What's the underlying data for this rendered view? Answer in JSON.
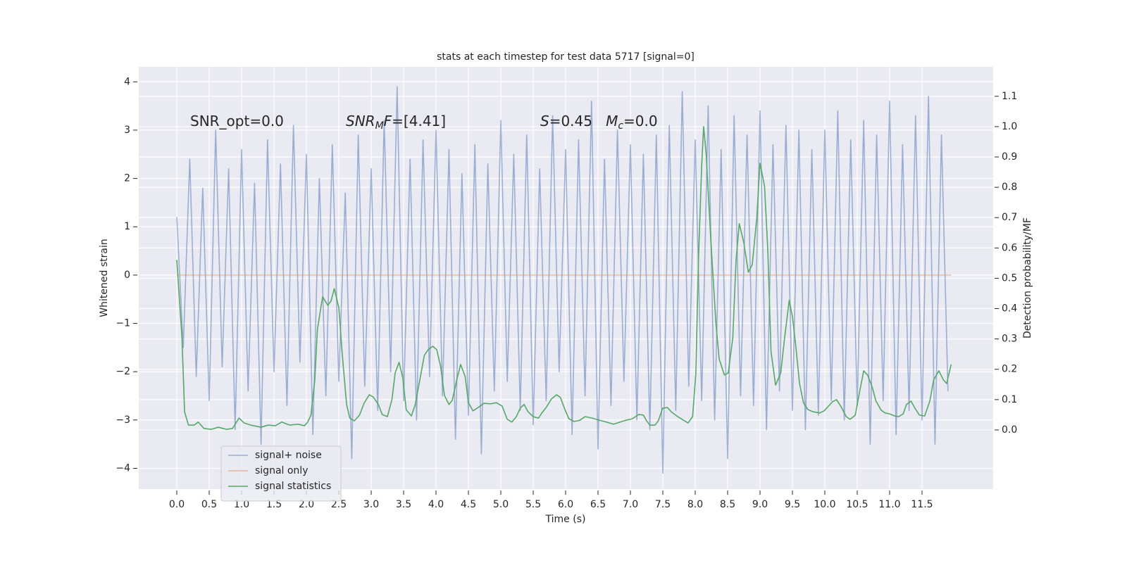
{
  "chart_data": {
    "type": "line",
    "title": "stats at each timestep for test data 5717 [signal=0]",
    "x_label": "Time (s)",
    "y_label": "Whitened strain",
    "y2_label": "Detection probability/MF",
    "xlim": [
      -0.587,
      12.598
    ],
    "ylim": [
      -4.43,
      4.31
    ],
    "y2lim": [
      -0.195,
      1.197
    ],
    "xticks": [
      {
        "value": 0,
        "label": "0.0"
      },
      0.5,
      {
        "value": 1,
        "label": "1.0"
      },
      1.5,
      {
        "value": 2,
        "label": "2.0"
      },
      2.5,
      {
        "value": 3,
        "label": "3.0"
      },
      3.5,
      {
        "value": 4,
        "label": "4.0"
      },
      4.5,
      {
        "value": 5,
        "label": "5.0"
      },
      5.5,
      {
        "value": 6,
        "label": "6.0"
      },
      6.5,
      {
        "value": 7,
        "label": "7.0"
      },
      7.5,
      {
        "value": 8,
        "label": "8.0"
      },
      8.5,
      {
        "value": 9,
        "label": "9.0"
      },
      9.5,
      {
        "value": 10,
        "label": "10.0"
      },
      10.5,
      {
        "value": 11,
        "label": "11.0"
      },
      11.5
    ],
    "yticks": [
      {
        "value": -4,
        "label": "−4"
      },
      {
        "value": -3,
        "label": "−3"
      },
      {
        "value": -2,
        "label": "−2"
      },
      {
        "value": -1,
        "label": "−1"
      },
      0,
      1,
      2,
      3,
      4
    ],
    "y2ticks": [
      {
        "value": 0,
        "label": "0.0"
      },
      0.1,
      0.2,
      0.3,
      0.4,
      0.5,
      0.6,
      0.7,
      0.8,
      0.9,
      {
        "value": 1,
        "label": "1.0"
      },
      1.1
    ],
    "grid": true,
    "legend": "lower left",
    "annotations": [
      [
        {
          "text": "SNR_opt=0.0"
        }
      ],
      [
        {
          "text": "SNR",
          "style": "italic"
        },
        {
          "text": "M",
          "style": "italic-sub"
        },
        {
          "text": "F",
          "style": "italic"
        },
        {
          "text": "=[4.41]"
        }
      ],
      [
        {
          "text": "S",
          "style": "italic"
        },
        {
          "text": "=0.45   "
        },
        {
          "text": "M",
          "style": "italic"
        },
        {
          "text": "c",
          "style": "italic-sub"
        },
        {
          "text": "=0.0"
        }
      ]
    ],
    "series": [
      {
        "name": "signal+ noise",
        "color": "#4c72b0",
        "alpha": 0.5,
        "x": [
          0,
          0.1,
          0.2,
          0.3,
          0.4,
          0.5,
          0.6,
          0.7,
          0.8,
          0.9,
          1,
          1.1,
          1.2,
          1.3,
          1.4,
          1.5,
          1.6,
          1.7,
          1.8,
          1.9,
          2,
          2.1,
          2.2,
          2.3,
          2.4,
          2.5,
          2.6,
          2.7,
          2.8,
          2.9,
          3,
          3.1,
          3.2,
          3.3,
          3.4,
          3.5,
          3.6,
          3.7,
          3.8,
          3.9,
          4,
          4.1,
          4.2,
          4.3,
          4.4,
          4.5,
          4.6,
          4.7,
          4.8,
          4.9,
          5,
          5.1,
          5.2,
          5.3,
          5.4,
          5.5,
          5.6,
          5.7,
          5.8,
          5.9,
          6,
          6.1,
          6.2,
          6.3,
          6.4,
          6.5,
          6.6,
          6.7,
          6.8,
          6.9,
          7,
          7.1,
          7.2,
          7.3,
          7.4,
          7.5,
          7.6,
          7.7,
          7.8,
          7.9,
          8,
          8.1,
          8.2,
          8.3,
          8.4,
          8.5,
          8.6,
          8.7,
          8.8,
          8.9,
          9,
          9.1,
          9.2,
          9.3,
          9.4,
          9.5,
          9.6,
          9.7,
          9.8,
          9.9,
          10,
          10.1,
          10.2,
          10.3,
          10.4,
          10.5,
          10.6,
          10.7,
          10.8,
          10.9,
          11,
          11.1,
          11.2,
          11.3,
          11.4,
          11.5,
          11.6,
          11.7,
          11.8,
          11.9
        ],
        "values": [
          1.2,
          -1.5,
          2.4,
          -2.1,
          1.8,
          -2.6,
          3.0,
          -1.9,
          2.2,
          -3.2,
          2.6,
          -2.4,
          1.9,
          -3.5,
          2.8,
          -2.0,
          2.3,
          -2.7,
          3.1,
          -1.8,
          2.5,
          -3.3,
          2.0,
          -2.5,
          2.7,
          -2.2,
          1.7,
          -3.8,
          2.9,
          -2.3,
          2.2,
          -2.8,
          3.2,
          -2.0,
          3.9,
          -2.6,
          2.4,
          -3.0,
          2.8,
          -2.1,
          3.0,
          -2.5,
          2.6,
          -3.4,
          2.1,
          -2.9,
          2.7,
          -3.7,
          2.3,
          -2.4,
          3.2,
          -2.2,
          2.5,
          -2.8,
          2.9,
          -3.1,
          2.2,
          -2.6,
          3.3,
          -2.0,
          2.6,
          -3.3,
          2.8,
          -2.5,
          3.6,
          -3.6,
          2.4,
          -2.7,
          3.0,
          -2.2,
          2.7,
          -3.0,
          2.5,
          -3.2,
          2.9,
          -4.1,
          3.1,
          -2.8,
          3.8,
          -2.3,
          2.8,
          -2.6,
          3.5,
          -3.0,
          2.6,
          -3.8,
          3.3,
          -2.5,
          2.9,
          -2.7,
          3.4,
          -3.2,
          2.7,
          -2.4,
          3.1,
          -2.8,
          3.0,
          -3.2,
          2.6,
          -2.9,
          3.0,
          -2.6,
          3.4,
          -3.0,
          2.8,
          -2.7,
          3.2,
          -3.5,
          2.9,
          -2.6,
          3.6,
          -3.3,
          2.7,
          -2.8,
          3.3,
          -3.0,
          3.7,
          -3.5,
          2.9,
          -2.4
        ]
      },
      {
        "name": "signal only",
        "color": "#dd8452",
        "alpha": 0.5,
        "x": [
          0,
          11.95
        ],
        "values": [
          0,
          0
        ]
      },
      {
        "name": "signal statistics",
        "color": "#55a868",
        "alpha": 1,
        "axis": "y2",
        "x": [
          0,
          0.08,
          0.12,
          0.18,
          0.27,
          0.33,
          0.42,
          0.53,
          0.64,
          0.77,
          0.86,
          0.96,
          1.04,
          1.14,
          1.3,
          1.41,
          1.52,
          1.62,
          1.74,
          1.87,
          1.97,
          2.02,
          2.07,
          2.13,
          2.17,
          2.25,
          2.33,
          2.38,
          2.43,
          2.5,
          2.55,
          2.62,
          2.67,
          2.74,
          2.82,
          2.89,
          2.97,
          3.03,
          3.11,
          3.17,
          3.25,
          3.32,
          3.37,
          3.43,
          3.49,
          3.54,
          3.62,
          3.68,
          3.75,
          3.82,
          3.88,
          3.95,
          4.01,
          4.07,
          4.13,
          4.2,
          4.25,
          4.32,
          4.38,
          4.45,
          4.5,
          4.57,
          4.65,
          4.74,
          4.84,
          4.93,
          5.02,
          5.1,
          5.17,
          5.24,
          5.3,
          5.36,
          5.42,
          5.5,
          5.58,
          5.64,
          5.7,
          5.78,
          5.86,
          5.92,
          5.99,
          6.05,
          6.13,
          6.22,
          6.3,
          6.41,
          6.52,
          6.63,
          6.74,
          6.84,
          6.93,
          7.03,
          7.13,
          7.2,
          7.25,
          7.3,
          7.38,
          7.43,
          7.5,
          7.57,
          7.63,
          7.73,
          7.82,
          7.89,
          7.96,
          8.01,
          8.05,
          8.1,
          8.13,
          8.17,
          8.24,
          8.32,
          8.37,
          8.45,
          8.51,
          8.58,
          8.63,
          8.68,
          8.75,
          8.82,
          8.88,
          8.95,
          9,
          9.07,
          9.12,
          9.17,
          9.24,
          9.32,
          9.38,
          9.45,
          9.5,
          9.55,
          9.61,
          9.67,
          9.74,
          9.82,
          9.92,
          9.99,
          10.05,
          10.12,
          10.18,
          10.25,
          10.33,
          10.39,
          10.47,
          10.53,
          10.6,
          10.66,
          10.73,
          10.79,
          10.87,
          10.93,
          11,
          11.08,
          11.14,
          11.21,
          11.26,
          11.33,
          11.39,
          11.46,
          11.54,
          11.62,
          11.68,
          11.76,
          11.83,
          11.88,
          11.95
        ],
        "values": [
          0.561,
          0.304,
          0.06,
          0.016,
          0.016,
          0.026,
          0.005,
          0.002,
          0.009,
          0.002,
          0.005,
          0.039,
          0.023,
          0.016,
          0.009,
          0.016,
          0.014,
          0.026,
          0.016,
          0.019,
          0.014,
          0.026,
          0.049,
          0.165,
          0.332,
          0.439,
          0.411,
          0.425,
          0.466,
          0.404,
          0.258,
          0.084,
          0.039,
          0.03,
          0.049,
          0.088,
          0.116,
          0.109,
          0.084,
          0.051,
          0.044,
          0.1,
          0.188,
          0.223,
          0.169,
          0.067,
          0.046,
          0.084,
          0.165,
          0.246,
          0.265,
          0.276,
          0.265,
          0.211,
          0.114,
          0.084,
          0.097,
          0.165,
          0.216,
          0.176,
          0.09,
          0.063,
          0.074,
          0.088,
          0.086,
          0.09,
          0.079,
          0.035,
          0.026,
          0.044,
          0.072,
          0.084,
          0.06,
          0.044,
          0.039,
          0.058,
          0.074,
          0.102,
          0.116,
          0.107,
          0.067,
          0.037,
          0.028,
          0.032,
          0.044,
          0.039,
          0.032,
          0.026,
          0.019,
          0.026,
          0.032,
          0.037,
          0.051,
          0.049,
          0.03,
          0.016,
          0.016,
          0.03,
          0.072,
          0.074,
          0.06,
          0.044,
          0.032,
          0.023,
          0.044,
          0.188,
          0.559,
          0.872,
          1.0,
          0.907,
          0.629,
          0.35,
          0.234,
          0.181,
          0.188,
          0.304,
          0.559,
          0.68,
          0.617,
          0.52,
          0.545,
          0.698,
          0.879,
          0.803,
          0.594,
          0.258,
          0.148,
          0.188,
          0.304,
          0.427,
          0.374,
          0.281,
          0.153,
          0.09,
          0.067,
          0.06,
          0.056,
          0.063,
          0.077,
          0.093,
          0.1,
          0.077,
          0.044,
          0.035,
          0.049,
          0.118,
          0.195,
          0.181,
          0.142,
          0.095,
          0.065,
          0.056,
          0.053,
          0.046,
          0.044,
          0.053,
          0.084,
          0.095,
          0.072,
          0.049,
          0.046,
          0.095,
          0.165,
          0.195,
          0.165,
          0.153,
          0.216
        ]
      }
    ]
  }
}
